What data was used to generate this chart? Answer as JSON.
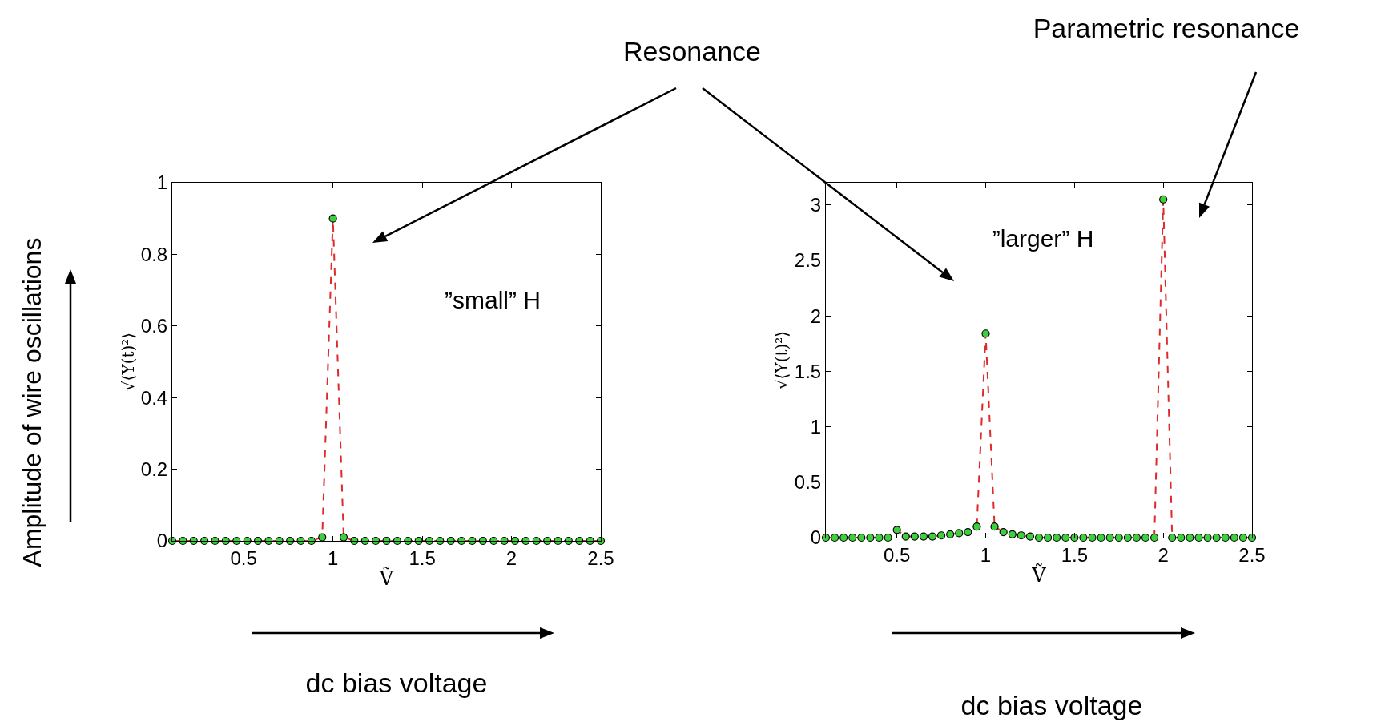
{
  "chart_data": [
    {
      "type": "line",
      "xlabel": "Ṽ",
      "ylabel": "√⟨Y(t)²⟩",
      "xlim": [
        0.1,
        2.5
      ],
      "xticks": [
        0.5,
        1,
        1.5,
        2,
        2.5
      ],
      "ylim": [
        0,
        1
      ],
      "yticks": [
        0,
        0.2,
        0.4,
        0.6,
        0.8,
        1
      ],
      "x": [
        0.1,
        0.16,
        0.22,
        0.28,
        0.34,
        0.4,
        0.46,
        0.52,
        0.58,
        0.64,
        0.7,
        0.76,
        0.82,
        0.88,
        0.94,
        1,
        1.06,
        1.12,
        1.18,
        1.24,
        1.3,
        1.36,
        1.42,
        1.48,
        1.54,
        1.6,
        1.66,
        1.72,
        1.78,
        1.84,
        1.9,
        1.96,
        2.02,
        2.08,
        2.14,
        2.2,
        2.26,
        2.32,
        2.38,
        2.44,
        2.5
      ],
      "series": [
        {
          "type": "line",
          "color": "#dd2a2a",
          "line_style": "dashed",
          "marker": "none",
          "values": [
            0,
            0,
            0,
            0,
            0,
            0,
            0,
            0,
            0,
            0,
            0,
            0,
            0,
            0,
            0.01,
            0.9,
            0.01,
            0,
            0,
            0,
            0,
            0,
            0,
            0,
            0,
            0,
            0,
            0,
            0,
            0,
            0,
            0,
            0,
            0,
            0,
            0,
            0,
            0,
            0,
            0,
            0
          ]
        },
        {
          "type": "scatter",
          "color": "#3ecf3e",
          "marker": "circle",
          "values": [
            0,
            0,
            0,
            0,
            0,
            0,
            0,
            0,
            0,
            0,
            0,
            0,
            0,
            0,
            0.01,
            0.9,
            0.01,
            0,
            0,
            0,
            0,
            0,
            0,
            0,
            0,
            0,
            0,
            0,
            0,
            0,
            0,
            0,
            0,
            0,
            0,
            0,
            0,
            0,
            0,
            0,
            0
          ]
        }
      ],
      "annotations": [
        "Resonance",
        "”small” H",
        "Amplitude of wire oscillations",
        "dc bias voltage"
      ]
    },
    {
      "type": "line",
      "xlabel": "Ṽ",
      "ylabel": "√⟨Y(t)²⟩",
      "xlim": [
        0.1,
        2.5
      ],
      "xticks": [
        0.5,
        1,
        1.5,
        2,
        2.5
      ],
      "ylim": [
        0,
        3.2
      ],
      "yticks": [
        0,
        0.5,
        1,
        1.5,
        2,
        2.5,
        3
      ],
      "x": [
        0.1,
        0.15,
        0.2,
        0.25,
        0.3,
        0.35,
        0.4,
        0.45,
        0.5,
        0.55,
        0.6,
        0.65,
        0.7,
        0.75,
        0.8,
        0.85,
        0.9,
        0.95,
        1,
        1.05,
        1.1,
        1.15,
        1.2,
        1.25,
        1.3,
        1.35,
        1.4,
        1.45,
        1.5,
        1.55,
        1.6,
        1.65,
        1.7,
        1.75,
        1.8,
        1.85,
        1.9,
        1.95,
        2,
        2.05,
        2.1,
        2.15,
        2.2,
        2.25,
        2.3,
        2.35,
        2.4,
        2.45,
        2.5
      ],
      "series": [
        {
          "type": "line",
          "color": "#dd2a2a",
          "line_style": "dashed",
          "marker": "none",
          "values": [
            0,
            0,
            0,
            0,
            0,
            0,
            0,
            0,
            0.07,
            0.01,
            0.01,
            0.01,
            0.01,
            0.02,
            0.03,
            0.04,
            0.05,
            0.1,
            1.84,
            0.1,
            0.05,
            0.03,
            0.02,
            0.01,
            0,
            0,
            0,
            0,
            0,
            0,
            0,
            0,
            0,
            0,
            0,
            0,
            0,
            0,
            3.05,
            0,
            0,
            0,
            0,
            0,
            0,
            0,
            0,
            0,
            0
          ]
        },
        {
          "type": "scatter",
          "color": "#3ecf3e",
          "marker": "circle",
          "values": [
            0,
            0,
            0,
            0,
            0,
            0,
            0,
            0,
            0.07,
            0.01,
            0.01,
            0.01,
            0.01,
            0.02,
            0.03,
            0.04,
            0.05,
            0.1,
            1.84,
            0.1,
            0.05,
            0.03,
            0.02,
            0.01,
            0,
            0,
            0,
            0,
            0,
            0,
            0,
            0,
            0,
            0,
            0,
            0,
            0,
            0,
            3.05,
            0,
            0,
            0,
            0,
            0,
            0,
            0,
            0,
            0,
            0
          ]
        }
      ],
      "annotations": [
        "”larger” H",
        "Parametric resonance",
        "dc bias voltage"
      ]
    }
  ]
}
